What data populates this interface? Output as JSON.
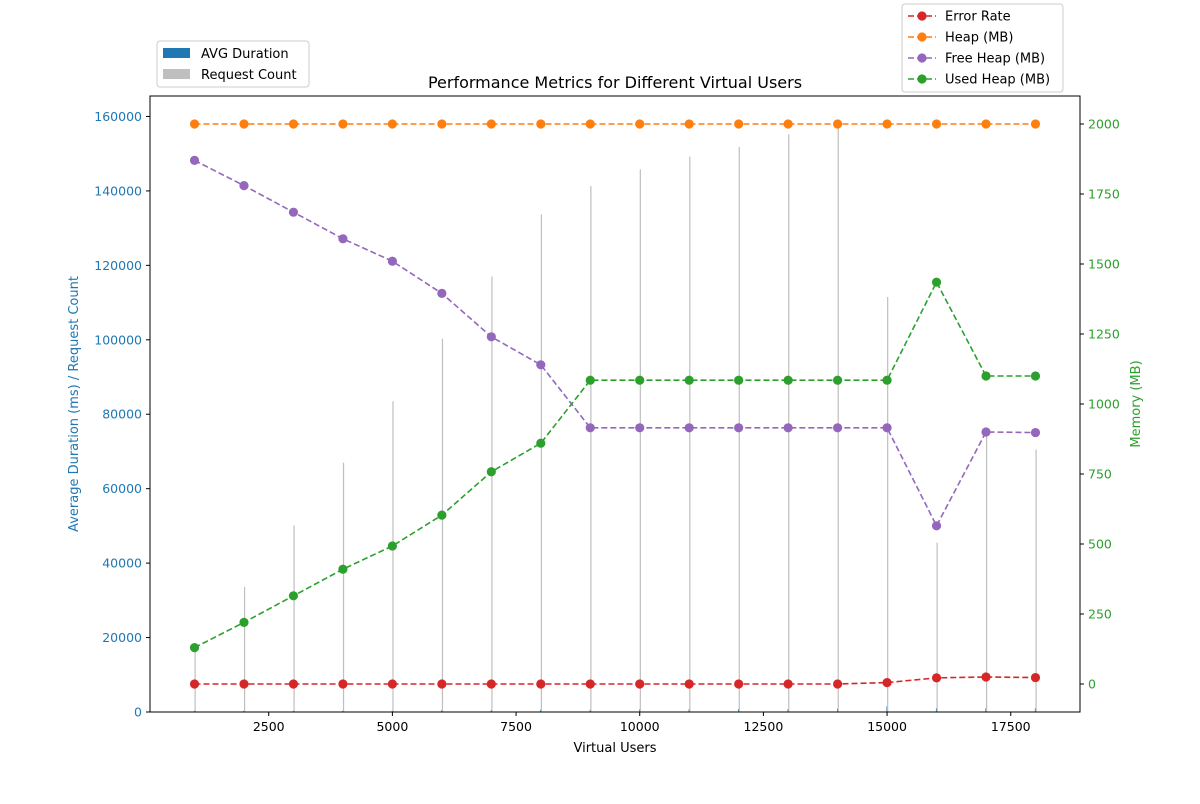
{
  "chart_data": {
    "type": "bar",
    "title": "Performance Metrics for Different Virtual Users",
    "xlabel": "Virtual Users",
    "ylabel_left": "Average Duration (ms) / Request Count",
    "ylabel_right": "Memory (MB)",
    "x": [
      1000,
      2000,
      3000,
      4000,
      5000,
      6000,
      7000,
      8000,
      9000,
      10000,
      11000,
      12000,
      13000,
      14000,
      15000,
      16000,
      17000,
      18000
    ],
    "xlim": [
      100,
      18900
    ],
    "xticks": [
      2500,
      5000,
      7500,
      10000,
      12500,
      15000,
      17500
    ],
    "ylim_left": [
      0,
      165500
    ],
    "yticks_left": [
      0,
      20000,
      40000,
      60000,
      80000,
      100000,
      120000,
      140000,
      160000
    ],
    "ylim_right": [
      -100,
      2100
    ],
    "yticks_right": [
      0,
      250,
      500,
      750,
      1000,
      1250,
      1500,
      1750,
      2000
    ],
    "grid": false,
    "left_legend_position": "top-left, above plot",
    "right_legend_position": "top-right, above plot",
    "bar_series": [
      {
        "name": "AVG Duration",
        "axis": "left",
        "color": "#1f77b4",
        "values": [
          300,
          300,
          300,
          300,
          300,
          500,
          500,
          600,
          600,
          700,
          700,
          800,
          800,
          900,
          1500,
          1000,
          1000,
          1000
        ]
      },
      {
        "name": "Request Count",
        "axis": "left",
        "color": "#bfbfbf",
        "values": [
          17000,
          33600,
          50100,
          67000,
          83500,
          100300,
          117000,
          133700,
          141300,
          145800,
          149200,
          151800,
          155200,
          157600,
          111500,
          45500,
          75000,
          70500
        ]
      }
    ],
    "line_series": [
      {
        "name": "Error Rate",
        "axis": "right",
        "color": "#d62728",
        "values": [
          0,
          0,
          0,
          0,
          0,
          0,
          0,
          0,
          0,
          0,
          0,
          0,
          0,
          0,
          5,
          22,
          25,
          23
        ]
      },
      {
        "name": "Heap (MB)",
        "axis": "right",
        "color": "#ff7f0e",
        "values": [
          2000,
          2000,
          2000,
          2000,
          2000,
          2000,
          2000,
          2000,
          2000,
          2000,
          2000,
          2000,
          2000,
          2000,
          2000,
          2000,
          2000,
          2000
        ]
      },
      {
        "name": "Free Heap (MB)",
        "axis": "right",
        "color": "#9467bd",
        "values": [
          1870,
          1780,
          1685,
          1590,
          1510,
          1395,
          1240,
          1140,
          915,
          915,
          915,
          915,
          915,
          915,
          915,
          565,
          900,
          898
        ]
      },
      {
        "name": "Used Heap (MB)",
        "axis": "right",
        "color": "#2ca02c",
        "values": [
          130,
          220,
          315,
          410,
          493,
          603,
          758,
          860,
          1085,
          1085,
          1085,
          1085,
          1085,
          1085,
          1085,
          1435,
          1100,
          1100
        ]
      }
    ]
  }
}
